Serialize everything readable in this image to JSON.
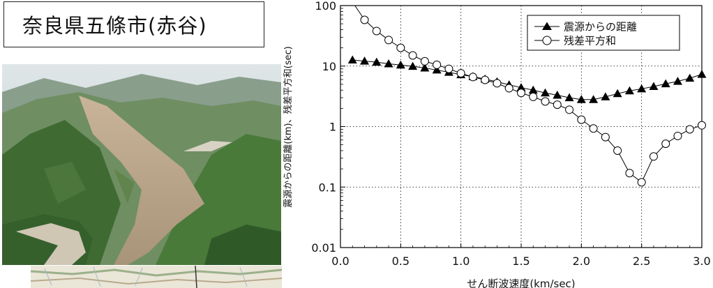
{
  "title": "奈良県五條市(赤谷)",
  "chart_data": {
    "type": "line",
    "xlabel": "せん断波速度(km/sec)",
    "ylabel": "震源からの距離(km)、残差平方和(sec)",
    "xlim": [
      0.0,
      3.0
    ],
    "ylim": [
      0.01,
      100
    ],
    "yscale": "log",
    "xticks": [
      "0.0",
      "0.5",
      "1.0",
      "1.5",
      "2.0",
      "2.5",
      "3.0"
    ],
    "yticks": [
      "0.01",
      "0.1",
      "1",
      "10",
      "100"
    ],
    "grid": true,
    "legend_position": "top-right",
    "series": [
      {
        "name": "震源からの距離",
        "marker": "filled-triangle",
        "color": "#000000",
        "x": [
          0.1,
          0.2,
          0.3,
          0.4,
          0.5,
          0.6,
          0.7,
          0.8,
          0.9,
          1.0,
          1.1,
          1.2,
          1.3,
          1.4,
          1.5,
          1.6,
          1.7,
          1.8,
          1.9,
          2.0,
          2.1,
          2.2,
          2.3,
          2.4,
          2.5,
          2.6,
          2.7,
          2.8,
          2.9,
          3.0
        ],
        "values": [
          12.6,
          12.1,
          11.6,
          10.9,
          10.4,
          9.9,
          9.3,
          8.6,
          7.9,
          7.2,
          6.7,
          6.1,
          5.5,
          4.9,
          4.4,
          4.0,
          3.6,
          3.3,
          3.0,
          2.8,
          2.8,
          3.1,
          3.5,
          3.9,
          4.2,
          4.6,
          5.1,
          5.6,
          6.3,
          7.3
        ]
      },
      {
        "name": "残差平方和",
        "marker": "open-circle",
        "color": "#000000",
        "x": [
          0.2,
          0.3,
          0.4,
          0.5,
          0.6,
          0.7,
          0.8,
          0.9,
          1.0,
          1.1,
          1.2,
          1.3,
          1.4,
          1.5,
          1.6,
          1.7,
          1.8,
          1.9,
          2.0,
          2.1,
          2.2,
          2.3,
          2.4,
          2.5,
          2.6,
          2.7,
          2.8,
          2.9,
          3.0
        ],
        "values": [
          58,
          38,
          27,
          20,
          15,
          12,
          10.5,
          9.0,
          7.6,
          6.6,
          5.9,
          5.2,
          4.3,
          3.6,
          3.1,
          2.6,
          2.3,
          1.9,
          1.3,
          0.93,
          0.67,
          0.4,
          0.17,
          0.12,
          0.32,
          0.52,
          0.7,
          0.9,
          1.05
        ]
      }
    ],
    "lead_in": {
      "series": 1,
      "x": [
        0.12,
        0.2
      ],
      "values": [
        100,
        58
      ]
    }
  }
}
